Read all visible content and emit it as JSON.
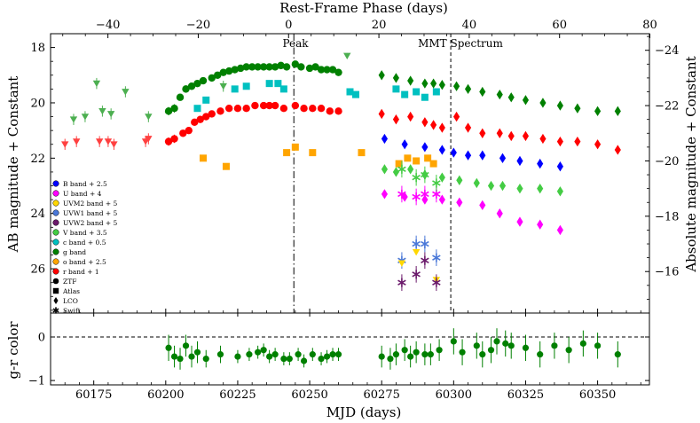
{
  "chart_data": [
    {
      "type": "scatter",
      "panel": "light-curve",
      "xlabel": "MJD (days)",
      "ylabel": "AB magnitude + Constant",
      "top_xlabel": "Rest-Frame Phase (days)",
      "right_ylabel": "Absolute magnitude + Constant",
      "xlim": [
        60160,
        60368
      ],
      "ylim": [
        27.6,
        17.5
      ],
      "top_xlim": [
        -52.7,
        79.9
      ],
      "right_ylim": [
        -14.5,
        -24.6
      ],
      "x_ticks": [
        60175,
        60200,
        60225,
        60250,
        60275,
        60300,
        60325,
        60350
      ],
      "y_ticks": [
        18,
        20,
        22,
        24,
        26
      ],
      "top_ticks": [
        -40,
        -20,
        0,
        20,
        40,
        60,
        80
      ],
      "right_ticks": [
        -24,
        -22,
        -20,
        -18,
        -16
      ],
      "annotations": [
        {
          "text": "Peak",
          "x": 60244.5
        },
        {
          "text": "MMT Spectrum",
          "x": 60299
        }
      ],
      "legend_position": "lower-left",
      "legend_bands": [
        {
          "label": "B band + 2.5",
          "color": "#0000ff"
        },
        {
          "label": "U band + 4",
          "color": "#ff00ff"
        },
        {
          "label": "UVM2 band + 5",
          "color": "#ffd700"
        },
        {
          "label": "UVW1 band + 5",
          "color": "#4a78d8"
        },
        {
          "label": "UVW2 band + 5",
          "color": "#6b1a6b"
        },
        {
          "label": "V band + 3.5",
          "color": "#44cc44"
        },
        {
          "label": "c band + 0.5",
          "color": "#00c0c0"
        },
        {
          "label": "g band",
          "color": "#008000"
        },
        {
          "label": "o band + 2.5",
          "color": "#ffa500"
        },
        {
          "label": "r band + 1",
          "color": "#ff0000"
        }
      ],
      "legend_markers": [
        {
          "label": "ZTF",
          "symbol": "circle"
        },
        {
          "label": "Atlas",
          "symbol": "square"
        },
        {
          "label": "LCO",
          "symbol": "diamond"
        },
        {
          "label": "Swift",
          "symbol": "star"
        }
      ],
      "series": [
        {
          "name": "g band",
          "survey": "ZTF",
          "marker": "circle",
          "color": "#008000",
          "x": [
            60201,
            60203,
            60205,
            60207,
            60209,
            60211,
            60213,
            60216,
            60218,
            60220,
            60222,
            60224,
            60226,
            60228,
            60230,
            60232,
            60234,
            60236,
            60238,
            60240,
            60242,
            60245,
            60247,
            60250,
            60252,
            60254,
            60256,
            60258,
            60260
          ],
          "y": [
            20.3,
            20.2,
            19.8,
            19.5,
            19.4,
            19.3,
            19.2,
            19.1,
            19.0,
            18.9,
            18.85,
            18.8,
            18.75,
            18.7,
            18.7,
            18.7,
            18.7,
            18.7,
            18.7,
            18.65,
            18.7,
            18.6,
            18.7,
            18.75,
            18.7,
            18.8,
            18.8,
            18.8,
            18.9
          ],
          "err": [
            0.15,
            0.15,
            0.12,
            0.12,
            0.1,
            0.1,
            0.1,
            0.1,
            0.08,
            0.08,
            0.08,
            0.08,
            0.08,
            0.08,
            0.08,
            0.08,
            0.08,
            0.08,
            0.08,
            0.08,
            0.08,
            0.08,
            0.08,
            0.08,
            0.08,
            0.08,
            0.08,
            0.08,
            0.1
          ]
        },
        {
          "name": "g band",
          "survey": "Atlas",
          "marker": "triangle",
          "color": "#4caf50",
          "x": [
            60168,
            60172,
            60176,
            60178,
            60181,
            60186,
            60194,
            60220,
            60263
          ],
          "y": [
            20.6,
            20.5,
            19.3,
            20.3,
            20.4,
            19.6,
            20.5,
            19.4,
            18.3
          ],
          "err": [
            0.2,
            0.2,
            0.2,
            0.2,
            0.2,
            0.2,
            0.2,
            0.2,
            0.1
          ]
        },
        {
          "name": "g band",
          "survey": "LCO",
          "marker": "diamond",
          "color": "#008000",
          "x": [
            60275,
            60280,
            60285,
            60290,
            60293,
            60296,
            60301,
            60305,
            60310,
            60316,
            60320,
            60325,
            60331,
            60337,
            60343,
            60350,
            60357
          ],
          "y": [
            19.0,
            19.1,
            19.2,
            19.3,
            19.3,
            19.35,
            19.4,
            19.5,
            19.6,
            19.7,
            19.8,
            19.9,
            20.0,
            20.1,
            20.2,
            20.3,
            20.3
          ],
          "err": [
            0.1,
            0.1,
            0.1,
            0.1,
            0.1,
            0.1,
            0.1,
            0.1,
            0.1,
            0.1,
            0.1,
            0.1,
            0.1,
            0.1,
            0.1,
            0.1,
            0.1
          ]
        },
        {
          "name": "r band + 1",
          "survey": "ZTF",
          "marker": "circle",
          "color": "#ff0000",
          "x": [
            60201,
            60203,
            60206,
            60208,
            60210,
            60212,
            60214,
            60216,
            60219,
            60222,
            60225,
            60228,
            60231,
            60234,
            60236,
            60238,
            60241,
            60245,
            60248,
            60251,
            60254,
            60257,
            60260
          ],
          "y": [
            21.4,
            21.3,
            21.1,
            21.0,
            20.7,
            20.6,
            20.5,
            20.4,
            20.3,
            20.2,
            20.2,
            20.2,
            20.1,
            20.1,
            20.1,
            20.1,
            20.2,
            20.1,
            20.2,
            20.2,
            20.2,
            20.3,
            20.3
          ],
          "err": [
            0.15,
            0.15,
            0.12,
            0.12,
            0.1,
            0.1,
            0.1,
            0.1,
            0.08,
            0.08,
            0.08,
            0.08,
            0.08,
            0.08,
            0.08,
            0.08,
            0.08,
            0.08,
            0.08,
            0.08,
            0.08,
            0.08,
            0.08
          ]
        },
        {
          "name": "r band + 1",
          "survey": "Atlas",
          "marker": "triangle",
          "color": "#ff4040",
          "x": [
            60165,
            60169,
            60177,
            60180,
            60182,
            60193,
            60194
          ],
          "y": [
            21.5,
            21.4,
            21.4,
            21.4,
            21.5,
            21.4,
            21.3
          ],
          "err": [
            0.2,
            0.2,
            0.2,
            0.2,
            0.2,
            0.2,
            0.2
          ]
        },
        {
          "name": "r band + 1",
          "survey": "LCO",
          "marker": "diamond",
          "color": "#ff0000",
          "x": [
            60275,
            60280,
            60285,
            60290,
            60293,
            60296,
            60301,
            60305,
            60310,
            60316,
            60320,
            60325,
            60331,
            60337,
            60343,
            60350,
            60357
          ],
          "y": [
            20.4,
            20.6,
            20.5,
            20.7,
            20.8,
            20.9,
            20.5,
            20.9,
            21.1,
            21.1,
            21.2,
            21.2,
            21.3,
            21.4,
            21.4,
            21.5,
            21.7
          ],
          "err": [
            0.15,
            0.15,
            0.15,
            0.15,
            0.15,
            0.15,
            0.15,
            0.15,
            0.15,
            0.15,
            0.15,
            0.15,
            0.15,
            0.15,
            0.15,
            0.15,
            0.15
          ]
        },
        {
          "name": "c band + 0.5",
          "survey": "Atlas",
          "marker": "square",
          "color": "#00c0c0",
          "x": [
            60211,
            60214,
            60224,
            60228,
            60236,
            60239,
            60241,
            60264,
            60266,
            60280,
            60283,
            60287,
            60290,
            60294
          ],
          "y": [
            20.2,
            19.9,
            19.5,
            19.4,
            19.3,
            19.3,
            19.5,
            19.6,
            19.7,
            19.5,
            19.7,
            19.6,
            19.8,
            19.6
          ],
          "err": [
            0.1,
            0.1,
            0.1,
            0.1,
            0.1,
            0.1,
            0.1,
            0.1,
            0.1,
            0.1,
            0.1,
            0.1,
            0.1,
            0.1
          ]
        },
        {
          "name": "o band + 2.5",
          "survey": "Atlas",
          "marker": "square",
          "color": "#ffa500",
          "x": [
            60213,
            60221,
            60242,
            60245,
            60251,
            60268,
            60281,
            60284,
            60287,
            60291,
            60293
          ],
          "y": [
            22.0,
            22.3,
            21.8,
            21.6,
            21.8,
            21.8,
            22.2,
            22.0,
            22.1,
            22.0,
            22.2
          ],
          "err": [
            0.1,
            0.1,
            0.1,
            0.1,
            0.1,
            0.1,
            0.1,
            0.1,
            0.1,
            0.1,
            0.1
          ]
        },
        {
          "name": "B band + 2.5",
          "survey": "LCO",
          "marker": "diamond",
          "color": "#0000ff",
          "x": [
            60276,
            60283,
            60290,
            60296,
            60300,
            60305,
            60310,
            60317,
            60323,
            60330,
            60337
          ],
          "y": [
            21.3,
            21.5,
            21.6,
            21.7,
            21.8,
            21.9,
            21.9,
            22.0,
            22.1,
            22.2,
            22.3
          ],
          "err": [
            0.1,
            0.1,
            0.1,
            0.1,
            0.1,
            0.1,
            0.1,
            0.1,
            0.1,
            0.1,
            0.1
          ]
        },
        {
          "name": "V band + 3.5",
          "survey": "LCO",
          "marker": "diamond",
          "color": "#44cc44",
          "x": [
            60276,
            60280,
            60285,
            60290,
            60296,
            60302,
            60308,
            60313,
            60317,
            60323,
            60330,
            60337
          ],
          "y": [
            22.4,
            22.5,
            22.4,
            22.6,
            22.7,
            22.8,
            22.9,
            23.0,
            23.0,
            23.1,
            23.1,
            23.2
          ],
          "err": [
            0.15,
            0.15,
            0.15,
            0.15,
            0.15,
            0.15,
            0.15,
            0.15,
            0.15,
            0.15,
            0.15,
            0.15
          ]
        },
        {
          "name": "U band + 4",
          "survey": "LCO",
          "marker": "diamond",
          "color": "#ff00ff",
          "x": [
            60276,
            60283,
            60290,
            60296,
            60302,
            60310,
            60316,
            60323,
            60330,
            60337
          ],
          "y": [
            23.3,
            23.4,
            23.5,
            23.5,
            23.6,
            23.7,
            24.0,
            24.3,
            24.4,
            24.6
          ],
          "err": [
            0.15,
            0.15,
            0.15,
            0.15,
            0.15,
            0.15,
            0.15,
            0.15,
            0.15,
            0.15
          ]
        },
        {
          "name": "U band + 4",
          "survey": "Swift",
          "marker": "star",
          "color": "#ff00ff",
          "x": [
            60282,
            60287,
            60290,
            60294
          ],
          "y": [
            23.3,
            23.4,
            23.3,
            23.3
          ],
          "err": [
            0.3,
            0.3,
            0.3,
            0.3
          ]
        },
        {
          "name": "UVW1 band + 5",
          "survey": "Swift",
          "marker": "star",
          "color": "#4a78d8",
          "x": [
            60282,
            60287,
            60290,
            60294
          ],
          "y": [
            25.7,
            25.1,
            25.1,
            25.6
          ],
          "err": [
            0.3,
            0.3,
            0.3,
            0.3
          ]
        },
        {
          "name": "UVM2 band + 5",
          "survey": "Swift",
          "marker": "triangle-down",
          "color": "#ffd700",
          "x": [
            60282,
            60287,
            60294
          ],
          "y": [
            25.8,
            25.4,
            26.4
          ],
          "err": [
            0.0,
            0.0,
            0.0
          ]
        },
        {
          "name": "UVW2 band + 5",
          "survey": "Swift",
          "marker": "star",
          "color": "#6b1a6b",
          "x": [
            60282,
            60287,
            60290,
            60294
          ],
          "y": [
            26.5,
            26.2,
            25.7,
            26.5
          ],
          "err": [
            0.3,
            0.3,
            0.3,
            0.3
          ]
        },
        {
          "name": "V band + 3.5",
          "survey": "Swift",
          "marker": "star",
          "color": "#44cc44",
          "x": [
            60282,
            60287,
            60290,
            60294
          ],
          "y": [
            22.4,
            22.7,
            22.6,
            22.9
          ],
          "err": [
            0.3,
            0.3,
            0.3,
            0.3
          ]
        }
      ]
    },
    {
      "type": "scatter",
      "panel": "color",
      "xlabel": "MJD (days)",
      "ylabel": "g-r color",
      "xlim": [
        60160,
        60368
      ],
      "ylim": [
        -1.1,
        0.55
      ],
      "y_ticks": [
        0,
        -1
      ],
      "reference_line": 0,
      "series": [
        {
          "name": "g-r color",
          "color": "#008000",
          "x": [
            60201,
            60203,
            60205,
            60207,
            60209,
            60211,
            60214,
            60219,
            60225,
            60229,
            60232,
            60234,
            60236,
            60238,
            60241,
            60243,
            60246,
            60248,
            60251,
            60254,
            60256,
            60258,
            60260,
            60275,
            60278,
            60280,
            60283,
            60285,
            60287,
            60290,
            60292,
            60295,
            60300,
            60303,
            60308,
            60310,
            60313,
            60315,
            60318,
            60320,
            60325,
            60330,
            60335,
            60340,
            60345,
            60350,
            60357
          ],
          "y": [
            -0.25,
            -0.45,
            -0.5,
            -0.2,
            -0.45,
            -0.35,
            -0.5,
            -0.4,
            -0.45,
            -0.4,
            -0.35,
            -0.3,
            -0.45,
            -0.4,
            -0.5,
            -0.5,
            -0.4,
            -0.55,
            -0.4,
            -0.5,
            -0.45,
            -0.4,
            -0.4,
            -0.45,
            -0.5,
            -0.4,
            -0.3,
            -0.45,
            -0.35,
            -0.4,
            -0.4,
            -0.3,
            -0.1,
            -0.35,
            -0.2,
            -0.4,
            -0.3,
            -0.1,
            -0.15,
            -0.2,
            -0.25,
            -0.4,
            -0.2,
            -0.3,
            -0.15,
            -0.2,
            -0.4
          ],
          "err": [
            0.3,
            0.25,
            0.25,
            0.25,
            0.25,
            0.25,
            0.2,
            0.2,
            0.15,
            0.15,
            0.15,
            0.15,
            0.15,
            0.15,
            0.15,
            0.15,
            0.15,
            0.15,
            0.15,
            0.15,
            0.15,
            0.15,
            0.15,
            0.25,
            0.25,
            0.25,
            0.25,
            0.25,
            0.25,
            0.25,
            0.25,
            0.25,
            0.3,
            0.3,
            0.3,
            0.3,
            0.3,
            0.3,
            0.3,
            0.3,
            0.3,
            0.3,
            0.3,
            0.3,
            0.3,
            0.3,
            0.3
          ]
        }
      ]
    }
  ]
}
